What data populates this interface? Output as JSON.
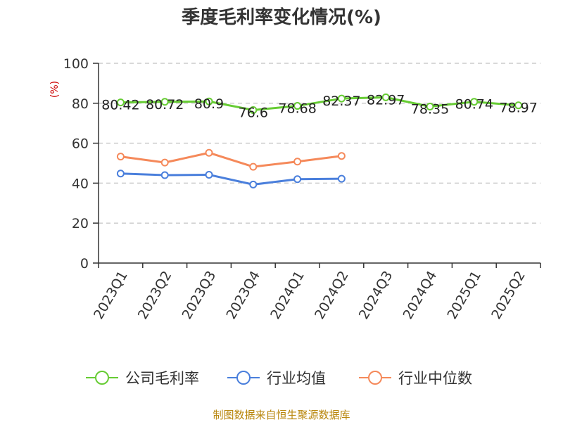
{
  "chart_data": {
    "type": "line",
    "title": "季度毛利率变化情况(%)",
    "ylabel": "(%)",
    "ylim": [
      0,
      100
    ],
    "yticks": [
      0,
      20,
      40,
      60,
      80,
      100
    ],
    "grid": true,
    "legend_position": "bottom",
    "categories": [
      "2023Q1",
      "2023Q2",
      "2023Q3",
      "2023Q4",
      "2024Q1",
      "2024Q2",
      "2024Q3",
      "2024Q4",
      "2025Q1",
      "2025Q2"
    ],
    "series": [
      {
        "name": "公司毛利率",
        "color": "#66cc33",
        "values": [
          80.42,
          80.72,
          80.9,
          76.6,
          78.68,
          82.37,
          82.97,
          78.35,
          80.74,
          78.97
        ],
        "labels": [
          "80.42",
          "80.72",
          "80.9",
          "76.6",
          "78.68",
          "82.37",
          "82.97",
          "78.35",
          "80.74",
          "78.97"
        ]
      },
      {
        "name": "行业均值",
        "color": "#4a7fdc",
        "values": [
          44.8,
          44.0,
          44.2,
          39.3,
          42.0,
          42.2,
          null,
          null,
          null,
          null
        ]
      },
      {
        "name": "行业中位数",
        "color": "#f5895a",
        "values": [
          53.3,
          50.3,
          55.2,
          48.2,
          50.8,
          53.6,
          null,
          null,
          null,
          null
        ]
      }
    ]
  },
  "source": "制图数据来自恒生聚源数据库"
}
